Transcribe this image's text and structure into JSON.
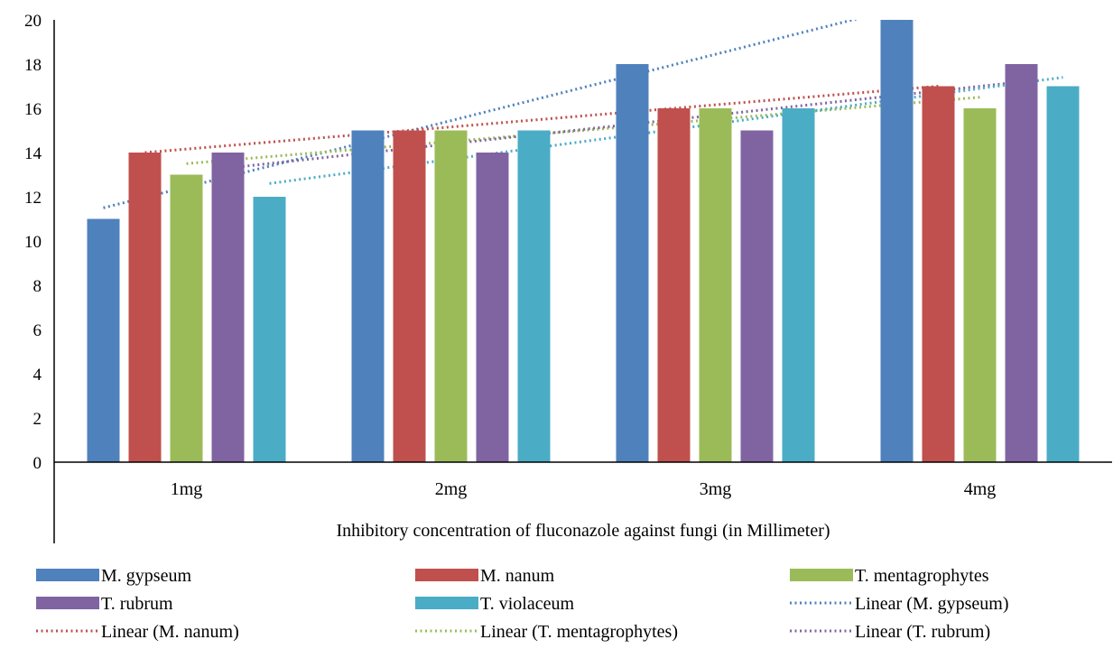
{
  "chart_data": {
    "type": "bar",
    "categories": [
      "1mg",
      "2mg",
      "3mg",
      "4mg"
    ],
    "series": [
      {
        "name": "M. gypseum",
        "values": [
          11,
          15,
          18,
          20
        ],
        "color": "#4f81bd"
      },
      {
        "name": "M. nanum",
        "values": [
          14,
          15,
          16,
          17
        ],
        "color": "#c0504d"
      },
      {
        "name": "T. mentagrophytes",
        "values": [
          13,
          15,
          16,
          16
        ],
        "color": "#9bbb59"
      },
      {
        "name": "T. rubrum",
        "values": [
          14,
          14,
          15,
          18
        ],
        "color": "#8064a2"
      },
      {
        "name": "T. violaceum",
        "values": [
          12,
          15,
          16,
          17
        ],
        "color": "#4bacc6"
      }
    ],
    "trendlines": [
      {
        "name": "Linear (M. gypseum)",
        "series": "M. gypseum",
        "color": "#4f81bd"
      },
      {
        "name": "Linear (M. nanum)",
        "series": "M. nanum",
        "color": "#c0504d"
      },
      {
        "name": "Linear (T. mentagrophytes)",
        "series": "T. mentagrophytes",
        "color": "#9bbb59"
      },
      {
        "name": "Linear (T. rubrum)",
        "series": "T. rubrum",
        "color": "#8064a2"
      }
    ],
    "trendlines_drawn_only": [
      {
        "series": "T. violaceum",
        "color": "#4bacc6"
      }
    ],
    "title": "",
    "xlabel": "Inhibitory concentration of fluconazole against fungi (in Millimeter)",
    "ylabel": "",
    "ylim": [
      0,
      20
    ],
    "yticks": [
      0,
      2,
      4,
      6,
      8,
      10,
      12,
      14,
      16,
      18,
      20
    ],
    "grid": false,
    "legend_position": "bottom"
  }
}
